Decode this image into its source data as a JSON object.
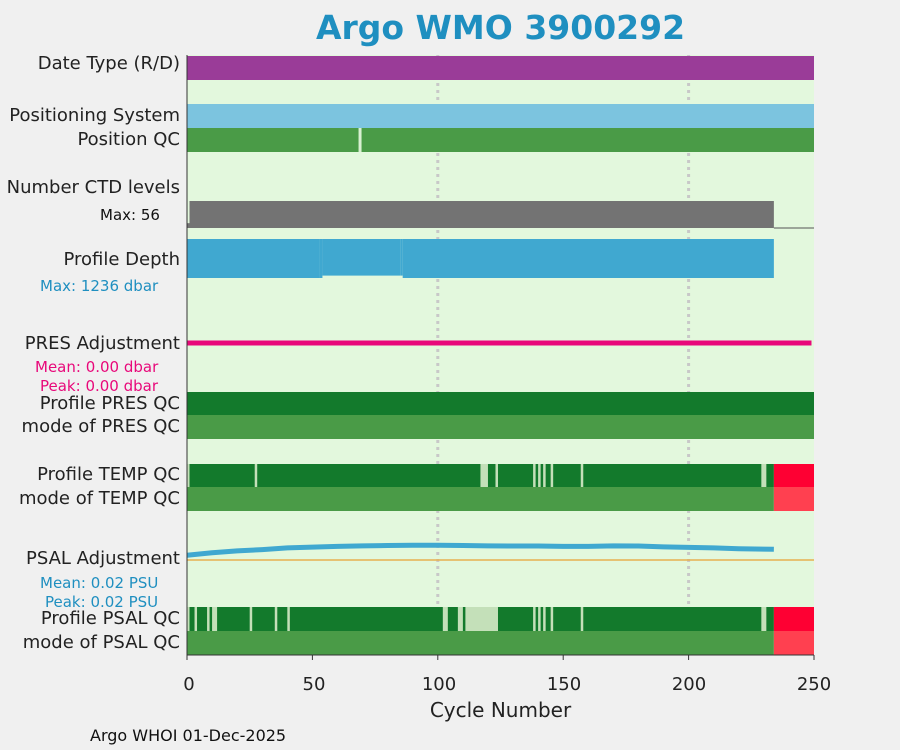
{
  "title": "Argo WMO 3900292",
  "footer": "Argo WHOI 01-Dec-2025",
  "colors": {
    "panel_bg": "#e3f8dd",
    "date_type": "#9a3c98",
    "positioning": "#7cc4df",
    "qc_good": "#4a9b47",
    "qc_dark": "#137a2c",
    "qc_light": "#c4e0b9",
    "ctd_levels": "#737373",
    "profile_depth": "#40a8d0",
    "pres_adjust": "#e8087a",
    "psal_adjust": "#40a8d0",
    "psal_zero_line": "#e8b050",
    "bad": "#fe0033",
    "bad_mode": "#ff4050"
  },
  "rows": {
    "date_type": "Date Type (R/D)",
    "positioning_system": "Positioning System",
    "position_qc": "Position QC",
    "number_ctd_levels": "Number CTD levels",
    "ctd_max": "Max: 56",
    "profile_depth": "Profile Depth",
    "depth_max": "Max: 1236 dbar",
    "pres_adjustment": "PRES Adjustment",
    "pres_mean": "Mean: 0.00 dbar",
    "pres_peak": "Peak: 0.00 dbar",
    "profile_pres_qc": "Profile PRES QC",
    "mode_pres_qc": "mode of PRES QC",
    "profile_temp_qc": "Profile TEMP QC",
    "mode_temp_qc": "mode of TEMP QC",
    "psal_adjustment": "PSAL Adjustment",
    "psal_mean": "Mean: 0.02 PSU",
    "psal_peak": "Peak: 0.02 PSU",
    "profile_psal_qc": "Profile PSAL QC",
    "mode_psal_qc": "mode of PSAL QC"
  },
  "chart_data": {
    "type": "bar",
    "xlabel": "Cycle Number",
    "xlim": [
      0,
      250
    ],
    "xticks": [
      0,
      50,
      100,
      150,
      200,
      250
    ],
    "xtick_labels": [
      "0",
      "50",
      "100",
      "150",
      "200",
      "250"
    ],
    "vlines": [
      100,
      200
    ],
    "last_cycle": 234,
    "date_type": [
      [
        0,
        250
      ]
    ],
    "positioning_system": [
      [
        0,
        250
      ]
    ],
    "position_qc_gaps": [
      68
    ],
    "ctd_levels": {
      "max": 56,
      "x": [
        0,
        1,
        234
      ],
      "levels": [
        10,
        56,
        56
      ]
    },
    "profile_depth": {
      "max": 1236,
      "x": [
        0,
        1,
        53,
        54,
        85,
        86,
        234
      ],
      "depth": [
        1236,
        1236,
        1236,
        1160,
        1160,
        1236,
        1236
      ]
    },
    "pres_adjustment": {
      "mean": 0.0,
      "peak": 0.0,
      "x": [
        0,
        249
      ],
      "values": [
        0,
        0
      ]
    },
    "profile_pres_qc": [
      [
        0,
        250
      ]
    ],
    "mode_pres_qc": [
      [
        0,
        250
      ]
    ],
    "profile_temp_qc": {
      "dark": [
        [
          1,
          27
        ],
        [
          28,
          117
        ],
        [
          120,
          123
        ],
        [
          124,
          138
        ],
        [
          139,
          140
        ],
        [
          141,
          142
        ],
        [
          143,
          145
        ],
        [
          146,
          157
        ],
        [
          158,
          229
        ],
        [
          231,
          234
        ]
      ],
      "bad": [
        [
          234,
          250
        ]
      ]
    },
    "mode_temp_qc": {
      "good": [
        [
          0,
          234
        ]
      ],
      "bad": [
        [
          234,
          250
        ]
      ]
    },
    "psal_adjustment": {
      "mean": 0.02,
      "peak": 0.02,
      "x": [
        0,
        10,
        20,
        30,
        40,
        50,
        60,
        70,
        80,
        90,
        100,
        110,
        120,
        130,
        140,
        150,
        160,
        170,
        180,
        190,
        200,
        210,
        220,
        234
      ],
      "values": [
        0.0064,
        0.0096,
        0.0121,
        0.0139,
        0.0161,
        0.0171,
        0.0182,
        0.0189,
        0.0193,
        0.0196,
        0.0196,
        0.0193,
        0.0189,
        0.0186,
        0.0186,
        0.0182,
        0.0182,
        0.0189,
        0.0186,
        0.0175,
        0.0168,
        0.0161,
        0.015,
        0.0143
      ]
    },
    "profile_psal_qc": {
      "dark": [
        [
          1,
          3
        ],
        [
          4,
          8
        ],
        [
          9,
          10
        ],
        [
          12,
          25
        ],
        [
          26,
          35
        ],
        [
          36,
          40
        ],
        [
          41,
          102
        ],
        [
          104,
          108
        ],
        [
          110,
          111
        ],
        [
          113,
          112
        ],
        [
          124,
          138
        ],
        [
          139,
          140
        ],
        [
          141,
          142
        ],
        [
          143,
          145
        ],
        [
          146,
          157
        ],
        [
          158,
          229
        ],
        [
          231,
          234
        ]
      ],
      "light_lead": [
        [
          0,
          1
        ],
        [
          3,
          4
        ],
        [
          8,
          9
        ],
        [
          10,
          12
        ],
        [
          25,
          26
        ],
        [
          35,
          36
        ],
        [
          40,
          41
        ],
        [
          102,
          104
        ],
        [
          108,
          110
        ],
        [
          111,
          113
        ],
        [
          113,
          124
        ]
      ],
      "bad": [
        [
          234,
          250
        ]
      ]
    },
    "mode_psal_qc": {
      "good": [
        [
          0,
          234
        ]
      ],
      "bad": [
        [
          234,
          250
        ]
      ]
    }
  }
}
